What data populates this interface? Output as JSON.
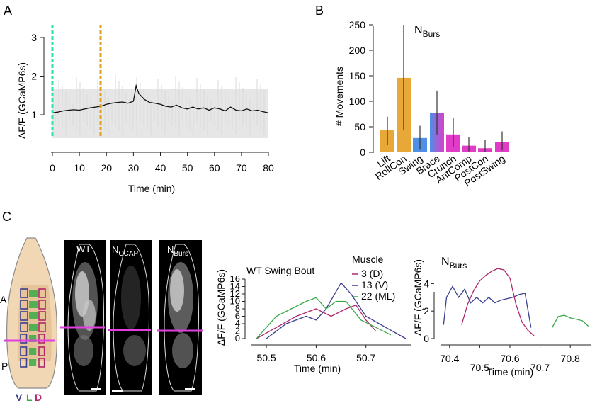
{
  "panels": {
    "A": "A",
    "B": "B",
    "C": "C"
  },
  "panelA": {
    "ylabel": "ΔF/F (GCaMP6s)",
    "xlabel": "Time (min)"
  },
  "panelB": {
    "title_main": "N",
    "title_sub": "Burs",
    "ylabel": "# Movements"
  },
  "panelC": {
    "embryo": {
      "left_labels": [
        "A",
        "P"
      ],
      "legend": [
        "V",
        "L",
        "D"
      ]
    },
    "images": [
      {
        "main": "WT",
        "sub": ""
      },
      {
        "main": "N",
        "sub": "CCAP"
      },
      {
        "main": "N",
        "sub": "Burs"
      }
    ],
    "chart_wt": {
      "title": "WT Swing Bout",
      "ylabel": "ΔF/F (GCaMP6s)",
      "xlabel": "Time (min)",
      "legend_title": "Muscle"
    },
    "chart_nburs": {
      "title_main": "N",
      "title_sub": "Burs",
      "ylabel": "ΔF/F (GCaMP6s)",
      "xlabel": "Time (min)"
    }
  },
  "colors": {
    "roll": "#e8a838",
    "swing": "#4f8fe6",
    "pink": "#e03cc8",
    "dorsal": "#b0286e",
    "ventral": "#3a3f8f",
    "lateral": "#3aaa48",
    "cyan": "#2fe0b0",
    "orange": "#e0a020"
  },
  "chart_data": [
    {
      "type": "line",
      "panel": "A",
      "xlabel": "Time (min)",
      "ylabel": "ΔF/F (GCaMP6s)",
      "xlim": [
        0,
        80
      ],
      "ylim": [
        0,
        3
      ],
      "xticks": [
        0,
        10,
        20,
        30,
        40,
        50,
        60,
        70,
        80
      ],
      "yticks": [
        1,
        2,
        3
      ],
      "markers": [
        0.5,
        18.5
      ],
      "x": [
        0,
        2,
        4,
        6,
        8,
        10,
        12,
        14,
        16,
        18,
        20,
        22,
        24,
        26,
        28,
        30,
        31,
        32,
        34,
        36,
        38,
        40,
        42,
        44,
        46,
        48,
        50,
        52,
        54,
        56,
        58,
        60,
        62,
        64,
        66,
        68,
        70,
        72,
        74,
        76,
        78,
        80
      ],
      "y": [
        1.05,
        1.07,
        1.1,
        1.12,
        1.13,
        1.12,
        1.15,
        1.18,
        1.2,
        1.22,
        1.27,
        1.3,
        1.32,
        1.33,
        1.3,
        1.35,
        1.75,
        1.55,
        1.4,
        1.32,
        1.3,
        1.27,
        1.22,
        1.2,
        1.25,
        1.18,
        1.15,
        1.2,
        1.15,
        1.18,
        1.12,
        1.18,
        1.15,
        1.1,
        1.2,
        1.12,
        1.1,
        1.15,
        1.1,
        1.12,
        1.08,
        1.05
      ]
    },
    {
      "type": "bar",
      "panel": "B",
      "ylabel": "# Movements",
      "ylim": [
        0,
        260
      ],
      "yticks": [
        0,
        50,
        100,
        150,
        200,
        250
      ],
      "categories": [
        "Lift",
        "RollCon",
        "Swing",
        "Brace",
        "Crunch",
        "AntComp",
        "PostCon",
        "PostSwing"
      ],
      "values": [
        43,
        146,
        28,
        77,
        35,
        13,
        8,
        20
      ],
      "errors": [
        [
          15,
          70
        ],
        [
          43,
          250
        ],
        [
          5,
          52
        ],
        [
          35,
          121
        ],
        [
          10,
          68
        ],
        [
          2,
          30
        ],
        [
          0,
          25
        ],
        [
          4,
          41
        ]
      ]
    },
    {
      "type": "line",
      "panel": "C-WT",
      "title": "WT Swing Bout",
      "xlabel": "Time (min)",
      "ylabel": "ΔF/F (GCaMP6s)",
      "xlim": [
        50.47,
        50.79
      ],
      "ylim": [
        0,
        16
      ],
      "xticks": [
        50.5,
        50.6,
        50.7
      ],
      "yticks": [
        0,
        2,
        4,
        6,
        8,
        10,
        12,
        14,
        16
      ],
      "legend_title": "Muscle",
      "series": [
        {
          "name": "3 (D)",
          "color": "dorsal",
          "x": [
            50.48,
            50.52,
            50.56,
            50.6,
            50.63,
            50.66,
            50.68,
            50.7,
            50.72
          ],
          "y": [
            0,
            3,
            6,
            8,
            6,
            8,
            9,
            5,
            2
          ]
        },
        {
          "name": "13 (V)",
          "color": "ventral",
          "x": [
            50.5,
            50.54,
            50.58,
            50.6,
            50.62,
            50.65,
            50.67,
            50.7,
            50.74,
            50.78
          ],
          "y": [
            0,
            4,
            6,
            5,
            8,
            15,
            12,
            6,
            3,
            0
          ]
        },
        {
          "name": "22 (ML)",
          "color": "lateral",
          "x": [
            50.48,
            50.52,
            50.55,
            50.58,
            50.6,
            50.62,
            50.64,
            50.66,
            50.69,
            50.72,
            50.75
          ],
          "y": [
            0,
            6,
            8,
            10,
            11,
            8,
            10,
            10,
            5,
            3,
            1
          ]
        }
      ]
    },
    {
      "type": "line",
      "panel": "C-NBurs",
      "xlabel": "Time (min)",
      "ylabel": "ΔF/F (GCaMP6s)",
      "xlim": [
        70.37,
        70.87
      ],
      "ylim": [
        0,
        5
      ],
      "xticks": [
        70.4,
        70.5,
        70.6,
        70.7,
        70.8
      ],
      "yticks": [
        0,
        2,
        4
      ],
      "series": [
        {
          "name": "",
          "color": "ventral",
          "x": [
            70.38,
            70.39,
            70.41,
            70.43,
            70.45,
            70.47,
            70.49,
            70.51,
            70.53,
            70.55,
            70.57,
            70.59,
            70.61,
            70.63,
            70.65,
            70.67
          ],
          "y": [
            1,
            3,
            3.8,
            3,
            3.6,
            2.6,
            3,
            2.6,
            3,
            2.6,
            2.8,
            2.9,
            3,
            3.2,
            3.3,
            0.8
          ]
        },
        {
          "name": "",
          "color": "dorsal",
          "x": [
            70.44,
            70.46,
            70.48,
            70.5,
            70.52,
            70.54,
            70.56,
            70.58,
            70.6,
            70.62,
            70.64,
            70.66,
            70.68
          ],
          "y": [
            1,
            2.5,
            3.5,
            4.2,
            4.6,
            4.9,
            5.1,
            5.0,
            4.4,
            2.5,
            1.2,
            0.6,
            0.2
          ]
        },
        {
          "name": "",
          "color": "lateral",
          "x": [
            70.74,
            70.76,
            70.78,
            70.8,
            70.82,
            70.84,
            70.86
          ],
          "y": [
            0.8,
            1.6,
            1.7,
            1.5,
            1.4,
            1.3,
            0.9
          ]
        }
      ]
    }
  ]
}
